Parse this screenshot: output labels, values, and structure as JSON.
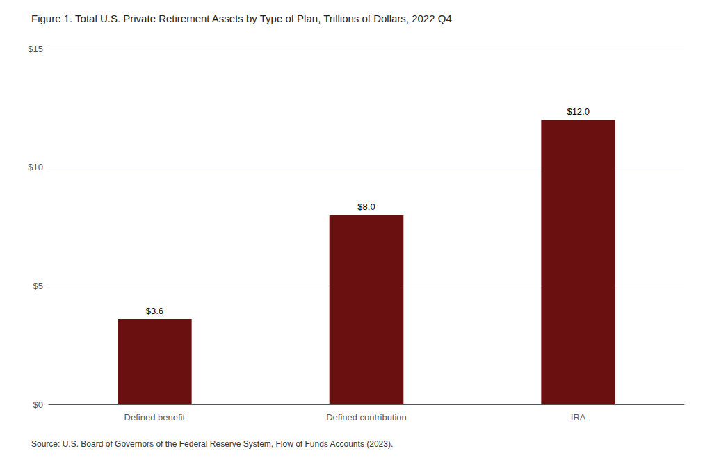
{
  "chart_data": {
    "type": "bar",
    "title": "Figure 1. Total U.S. Private Retirement Assets by Type of Plan, Trillions of Dollars, 2022 Q4",
    "annotations": [
      "Source: U.S. Board of Governors of the Federal Reserve System, Flow of Funds Accounts (2023)."
    ],
    "categories": [
      "Defined benefit",
      "Defined contribution",
      "IRA"
    ],
    "values": [
      3.6,
      8.0,
      12.0
    ],
    "value_labels": [
      "$3.6",
      "$8.0",
      "$12.0"
    ],
    "data_labels": true,
    "color": "#6B1010",
    "ylim": [
      0,
      15
    ],
    "yticks": [
      {
        "value": 0,
        "label": "$0"
      },
      {
        "value": 5,
        "label": "$5"
      },
      {
        "value": 10,
        "label": "$10"
      },
      {
        "value": 15,
        "label": "$15"
      }
    ],
    "grid": true
  }
}
